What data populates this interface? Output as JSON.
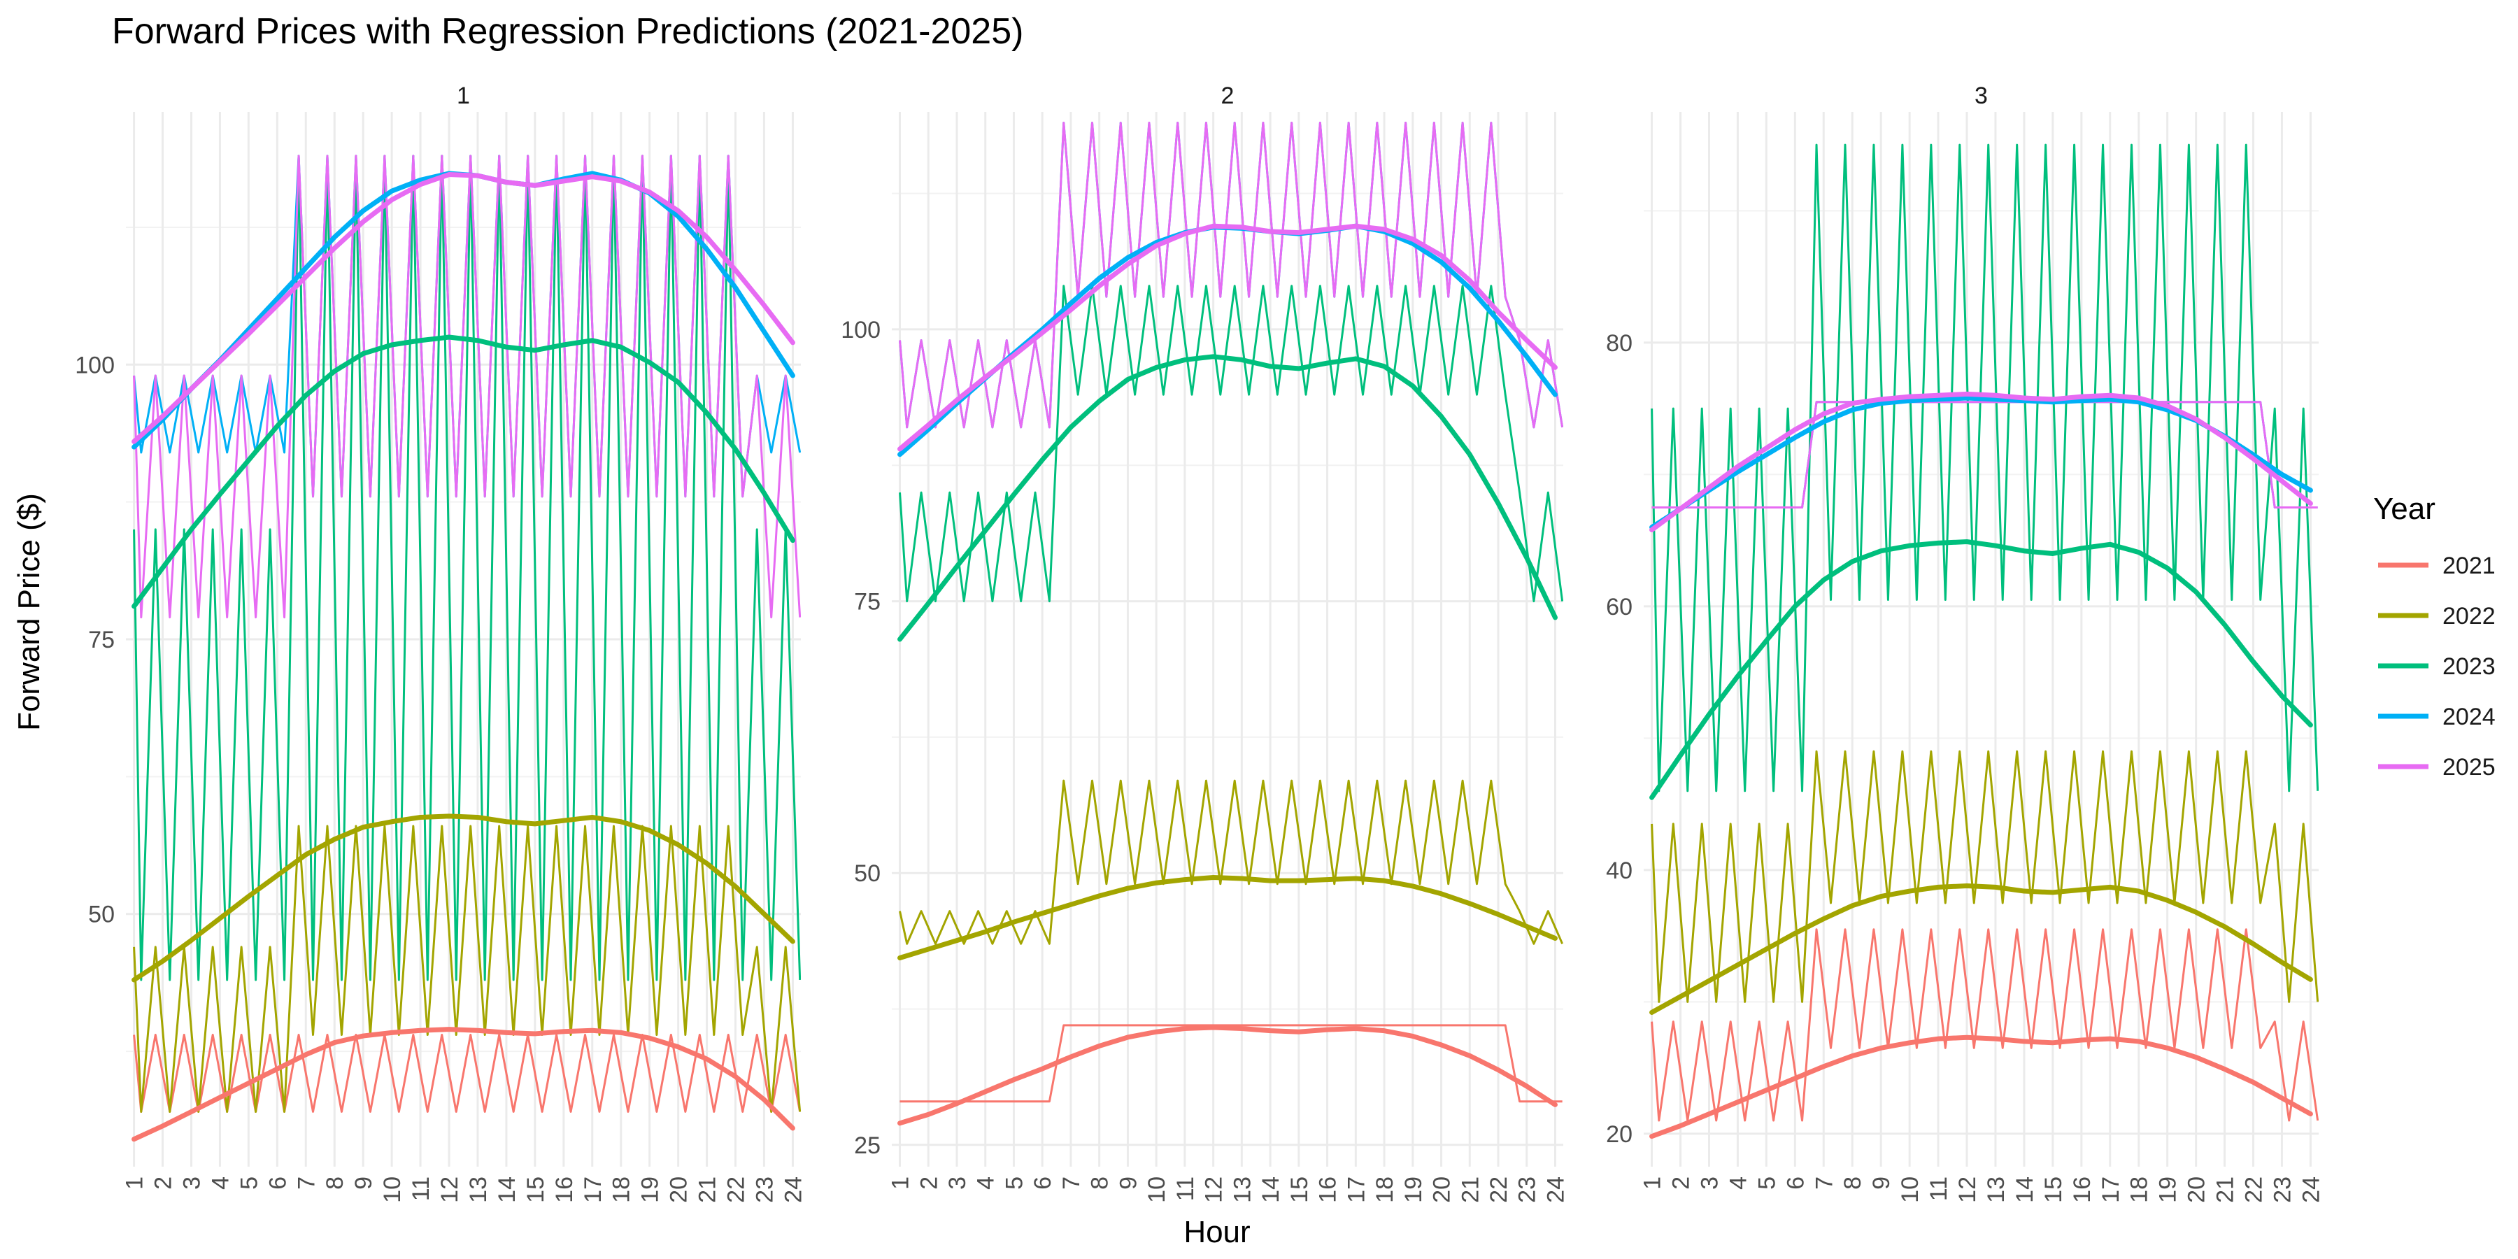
{
  "chart_data": {
    "type": "line",
    "title": "Forward Prices with Regression Predictions (2021-2025)",
    "xlabel": "Hour",
    "ylabel": "Forward Price ($)",
    "legend": {
      "title": "Year",
      "position": "right"
    },
    "grid": true,
    "hours": [
      1,
      2,
      3,
      4,
      5,
      6,
      7,
      8,
      9,
      10,
      11,
      12,
      13,
      14,
      15,
      16,
      17,
      18,
      19,
      20,
      21,
      22,
      23,
      24
    ],
    "series_meta": [
      {
        "name": "2021",
        "color": "#F8766D"
      },
      {
        "name": "2022",
        "color": "#A3A500"
      },
      {
        "name": "2023",
        "color": "#00BF7D"
      },
      {
        "name": "2024",
        "color": "#00B0F6"
      },
      {
        "name": "2025",
        "color": "#E76BF3"
      }
    ],
    "panels": [
      {
        "label": "1",
        "ylim": [
          27,
          123
        ],
        "yticks": [
          50,
          75,
          100
        ],
        "ygrid_minor": [
          37.5,
          62.5,
          87.5,
          112.5
        ],
        "regression": {
          "2021": [
            29.5,
            30.7,
            32,
            33.3,
            34.6,
            35.9,
            37.2,
            38.3,
            38.9,
            39.2,
            39.4,
            39.5,
            39.4,
            39.2,
            39.1,
            39.3,
            39.4,
            39.2,
            38.7,
            37.9,
            36.8,
            35.2,
            33.1,
            30.5
          ],
          "2022": [
            44,
            45.7,
            47.6,
            49.6,
            51.6,
            53.5,
            55.4,
            56.8,
            57.9,
            58.4,
            58.8,
            58.9,
            58.8,
            58.4,
            58.2,
            58.5,
            58.8,
            58.4,
            57.6,
            56.3,
            54.6,
            52.5,
            50,
            47.5
          ],
          "2023": [
            78,
            81.5,
            85,
            88.2,
            91.3,
            94.4,
            97.2,
            99.4,
            101,
            101.8,
            102.2,
            102.5,
            102.2,
            101.6,
            101.3,
            101.8,
            102.2,
            101.6,
            100.2,
            98.4,
            95.6,
            92.3,
            88.3,
            84
          ],
          "2024": [
            92.5,
            95,
            97.8,
            100.4,
            103.2,
            106,
            108.8,
            111.6,
            114,
            115.8,
            116.8,
            117.4,
            117.2,
            116.6,
            116.3,
            116.9,
            117.4,
            116.8,
            115.6,
            113.5,
            110.5,
            107,
            103,
            99
          ],
          "2025": [
            93,
            95.3,
            97.8,
            100.3,
            102.8,
            105.4,
            108,
            110.6,
            113,
            115,
            116.4,
            117.3,
            117.2,
            116.6,
            116.3,
            116.7,
            117.1,
            116.7,
            115.7,
            114,
            111.6,
            108.6,
            105.4,
            102
          ]
        },
        "raw": {
          "2021": {
            "lo": 32,
            "hi": 39,
            "peak_start": 7,
            "peak_end": 22
          },
          "2022": {
            "lo": 32,
            "hi": 47,
            "peak_lo": 39,
            "peak_hi": 58,
            "peak_start": 7,
            "peak_end": 22
          },
          "2023": {
            "lo": 44,
            "hi": 85,
            "peak_lo": 44,
            "peak_hi": 119,
            "peak_start": 7,
            "peak_end": 22
          },
          "2024": {
            "lo": 92,
            "hi": 99,
            "peak_lo": 88,
            "peak_hi": 119,
            "peak_start": 7,
            "peak_end": 22
          },
          "2025": {
            "lo": 77,
            "hi": 99,
            "peak_lo": 88,
            "peak_hi": 119,
            "peak_start": 7,
            "peak_end": 22
          }
        }
      },
      {
        "label": "2",
        "ylim": [
          23,
          120
        ],
        "yticks": [
          25,
          50,
          75,
          100
        ],
        "ygrid_minor": [
          37.5,
          62.5,
          87.5,
          112.5
        ],
        "regression": {
          "2021": [
            27,
            27.8,
            28.8,
            29.9,
            31,
            32,
            33.1,
            34.1,
            34.9,
            35.4,
            35.7,
            35.8,
            35.7,
            35.5,
            35.4,
            35.6,
            35.7,
            35.5,
            35,
            34.2,
            33.2,
            31.9,
            30.4,
            28.7
          ],
          "2022": [
            42.2,
            43,
            43.8,
            44.6,
            45.5,
            46.3,
            47.1,
            47.9,
            48.6,
            49.1,
            49.4,
            49.6,
            49.5,
            49.3,
            49.3,
            49.4,
            49.5,
            49.3,
            48.8,
            48.1,
            47.2,
            46.2,
            45.1,
            44
          ],
          "2023": [
            71.5,
            74.8,
            78.2,
            81.5,
            84.8,
            88,
            91,
            93.4,
            95.4,
            96.5,
            97.2,
            97.5,
            97.2,
            96.6,
            96.4,
            96.9,
            97.3,
            96.6,
            94.8,
            92,
            88.5,
            84,
            79,
            73.5
          ],
          "2024": [
            88.5,
            90.8,
            93.2,
            95.5,
            97.8,
            100,
            102.4,
            104.7,
            106.6,
            108,
            108.9,
            109.4,
            109.3,
            109,
            108.8,
            109.1,
            109.5,
            109,
            107.9,
            106.2,
            103.8,
            100.8,
            97.5,
            94
          ],
          "2025": [
            89,
            91.2,
            93.5,
            95.6,
            97.6,
            99.7,
            101.8,
            104,
            106,
            107.7,
            108.8,
            109.5,
            109.4,
            109,
            108.9,
            109.2,
            109.5,
            109.2,
            108.3,
            106.8,
            104.5,
            101.6,
            99,
            96.5
          ]
        },
        "raw": {
          "2021": {
            "lo": 29,
            "hi": 29,
            "peak_lo": 36,
            "peak_hi": 36,
            "peak_start": 7,
            "peak_end": 22
          },
          "2022": {
            "lo": 43.5,
            "hi": 46.5,
            "peak_lo": 49,
            "peak_hi": 58.5,
            "peak_start": 7,
            "peak_end": 22
          },
          "2023": {
            "lo": 75,
            "hi": 85,
            "peak_lo": 94,
            "peak_hi": 104,
            "peak_start": 7,
            "peak_end": 22
          },
          "2024": {
            "lo": 91,
            "hi": 99,
            "peak_lo": 103,
            "peak_hi": 119,
            "peak_start": 7,
            "peak_end": 22
          },
          "2025": {
            "lo": 91,
            "hi": 99,
            "peak_lo": 103,
            "peak_hi": 119,
            "peak_start": 7,
            "peak_end": 22
          }
        }
      },
      {
        "label": "3",
        "ylim": [
          17.5,
          97.5
        ],
        "yticks": [
          20,
          40,
          60,
          80
        ],
        "ygrid_minor": [
          30,
          50,
          70,
          90
        ],
        "regression": {
          "2021": [
            19.8,
            20.6,
            21.5,
            22.4,
            23.3,
            24.2,
            25.1,
            25.9,
            26.5,
            26.9,
            27.2,
            27.3,
            27.2,
            27,
            26.9,
            27.1,
            27.2,
            27,
            26.5,
            25.8,
            24.9,
            23.9,
            22.7,
            21.5
          ],
          "2022": [
            29.2,
            30.4,
            31.6,
            32.8,
            34,
            35.2,
            36.3,
            37.3,
            38,
            38.4,
            38.7,
            38.8,
            38.7,
            38.4,
            38.3,
            38.5,
            38.7,
            38.4,
            37.7,
            36.8,
            35.7,
            34.4,
            33,
            31.7
          ],
          "2023": [
            45.5,
            48.7,
            51.8,
            54.7,
            57.4,
            60,
            62,
            63.4,
            64.2,
            64.6,
            64.8,
            64.9,
            64.6,
            64.2,
            64,
            64.4,
            64.7,
            64.1,
            62.9,
            61.1,
            58.6,
            55.8,
            53.2,
            51
          ],
          "2024": [
            66,
            67.4,
            68.8,
            70.2,
            71.5,
            72.8,
            74,
            74.9,
            75.4,
            75.6,
            75.7,
            75.8,
            75.7,
            75.6,
            75.5,
            75.6,
            75.7,
            75.5,
            74.9,
            74.1,
            72.9,
            71.5,
            70,
            68.8
          ],
          "2025": [
            65.8,
            67.4,
            69,
            70.6,
            72,
            73.4,
            74.6,
            75.4,
            75.7,
            75.9,
            76,
            76.1,
            76,
            75.8,
            75.7,
            75.9,
            76,
            75.8,
            75.2,
            74.2,
            72.8,
            71.2,
            69.5,
            67.8
          ]
        },
        "raw": {
          "2021": {
            "lo": 21,
            "hi": 28.5,
            "peak_lo": 26.5,
            "peak_hi": 35.5,
            "peak_start": 7,
            "peak_end": 22
          },
          "2022": {
            "lo": 30,
            "hi": 43.5,
            "peak_lo": 37.5,
            "peak_hi": 49,
            "peak_start": 7,
            "peak_end": 22
          },
          "2023": {
            "lo": 46,
            "hi": 75,
            "peak_lo": 60.5,
            "peak_hi": 95,
            "peak_start": 7,
            "peak_end": 22
          },
          "2024": {
            "lo": 67.5,
            "hi": 67.5,
            "peak_lo": 75.5,
            "peak_hi": 75.5,
            "peak_start": 7,
            "peak_end": 22
          },
          "2025": {
            "lo": 67.5,
            "hi": 67.5,
            "peak_lo": 75.5,
            "peak_hi": 75.5,
            "peak_start": 7,
            "peak_end": 22
          }
        }
      }
    ]
  }
}
